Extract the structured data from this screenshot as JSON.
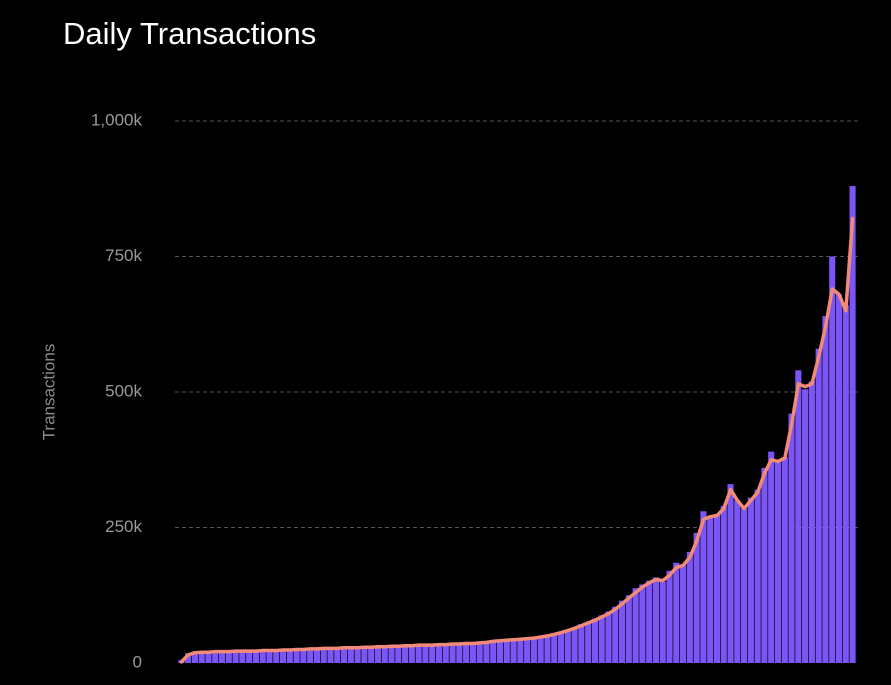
{
  "chart_data": {
    "type": "bar",
    "title": "Daily Transactions",
    "y_label": "Transactions",
    "categories": [
      null,
      null,
      null,
      null,
      null,
      null,
      null,
      null,
      null,
      null,
      null,
      null,
      null,
      null,
      null,
      null,
      null,
      null,
      null,
      null,
      null,
      null,
      null,
      null,
      null,
      null,
      null,
      null,
      null,
      null,
      null,
      null,
      null,
      null,
      null,
      null,
      null,
      null,
      null,
      null,
      null,
      null,
      null,
      null,
      null,
      null,
      null,
      null,
      null,
      null,
      null,
      null,
      null,
      null,
      null,
      null,
      null,
      null,
      null,
      null,
      null,
      null,
      null,
      null,
      null,
      null,
      null,
      null,
      null,
      null,
      null,
      null,
      null,
      null,
      null,
      null,
      null,
      null,
      null,
      null,
      null,
      null,
      null,
      null,
      null,
      null,
      null,
      null,
      null,
      null,
      null,
      null,
      null,
      null,
      null,
      null,
      null,
      null,
      null,
      null
    ],
    "series": [
      {
        "type": "bar",
        "color": "#7b55f5",
        "values": [
          5,
          18,
          20,
          20,
          21,
          21,
          21,
          22,
          22,
          22,
          22,
          23,
          23,
          23,
          24,
          24,
          25,
          26,
          26,
          27,
          27,
          27,
          28,
          28,
          28,
          28,
          29,
          29,
          30,
          31,
          31,
          31,
          32,
          32,
          33,
          33,
          34,
          34,
          34,
          35,
          35,
          36,
          36,
          37,
          38,
          40,
          42,
          43,
          43,
          44,
          45,
          46,
          47,
          49,
          52,
          55,
          58,
          62,
          66,
          72,
          76,
          82,
          88,
          95,
          104,
          115,
          125,
          138,
          145,
          152,
          158,
          150,
          170,
          185,
          180,
          205,
          240,
          280,
          270,
          275,
          290,
          330,
          300,
          285,
          305,
          320,
          360,
          390,
          370,
          380,
          460,
          540,
          505,
          520,
          580,
          640,
          750,
          680,
          660,
          880
        ]
      },
      {
        "type": "line",
        "color": "#f28a7a",
        "values": [
          2,
          15,
          19,
          20,
          20,
          21,
          21,
          21,
          22,
          22,
          22,
          22,
          23,
          23,
          23,
          24,
          24,
          25,
          25,
          26,
          26,
          27,
          27,
          27,
          28,
          28,
          28,
          29,
          29,
          30,
          30,
          31,
          31,
          32,
          32,
          33,
          33,
          33,
          34,
          34,
          35,
          35,
          36,
          36,
          37,
          38,
          40,
          41,
          42,
          43,
          44,
          45,
          46,
          48,
          50,
          53,
          56,
          60,
          64,
          69,
          74,
          79,
          85,
          91,
          99,
          109,
          120,
          130,
          140,
          148,
          154,
          152,
          162,
          176,
          180,
          195,
          225,
          265,
          270,
          272,
          285,
          320,
          300,
          285,
          300,
          315,
          350,
          375,
          372,
          378,
          440,
          515,
          510,
          515,
          565,
          620,
          690,
          680,
          650,
          820
        ]
      }
    ],
    "ylim": [
      0,
      1000
    ],
    "yticks": [
      0,
      {
        "value": 250,
        "label": "250k"
      },
      {
        "value": 500,
        "label": "500k"
      },
      {
        "value": 750,
        "label": "750k"
      },
      {
        "value": 1000,
        "label": "1,000k"
      }
    ],
    "grid": true
  }
}
